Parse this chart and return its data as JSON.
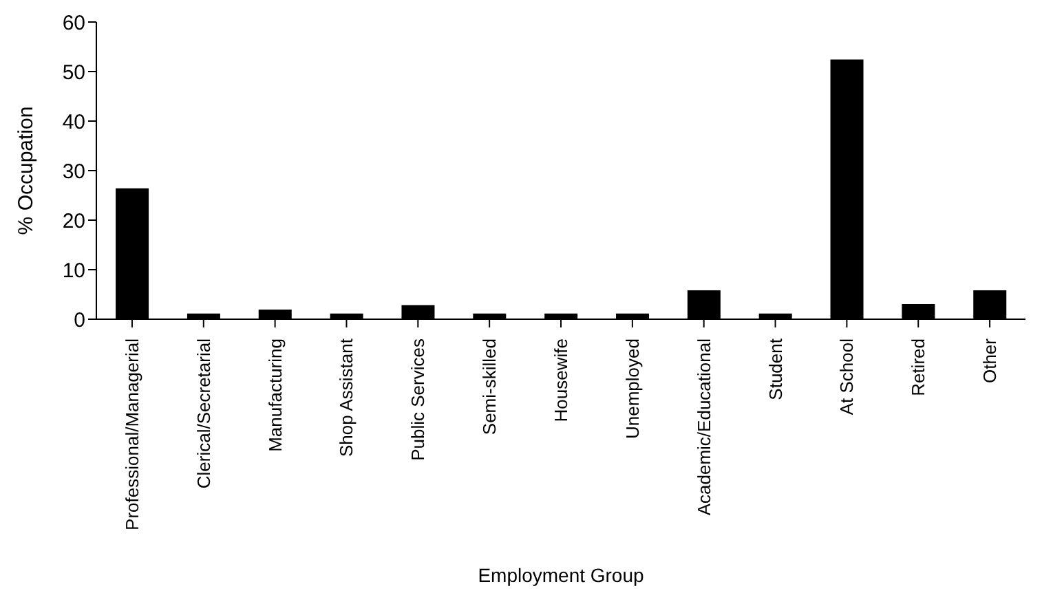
{
  "chart_data": {
    "type": "bar",
    "xlabel": "Employment Group",
    "ylabel": "% Occupation",
    "categories": [
      "Professional/Managerial",
      "Clerical/Secretarial",
      "Manufacturing",
      "Shop Assistant",
      "Public Services",
      "Semi-skilled",
      "Housewife",
      "Unemployed",
      "Academic/Educational",
      "Student",
      "At School",
      "Retired",
      "Other"
    ],
    "values": [
      26.3,
      1,
      1.8,
      1,
      2.7,
      1,
      1,
      1,
      5.7,
      1,
      52.3,
      2.9,
      5.7
    ],
    "color": "#000000",
    "ylim": [
      0,
      60
    ],
    "yticks": [
      0,
      10,
      20,
      30,
      40,
      50,
      60
    ],
    "grid": false,
    "legend": false
  }
}
